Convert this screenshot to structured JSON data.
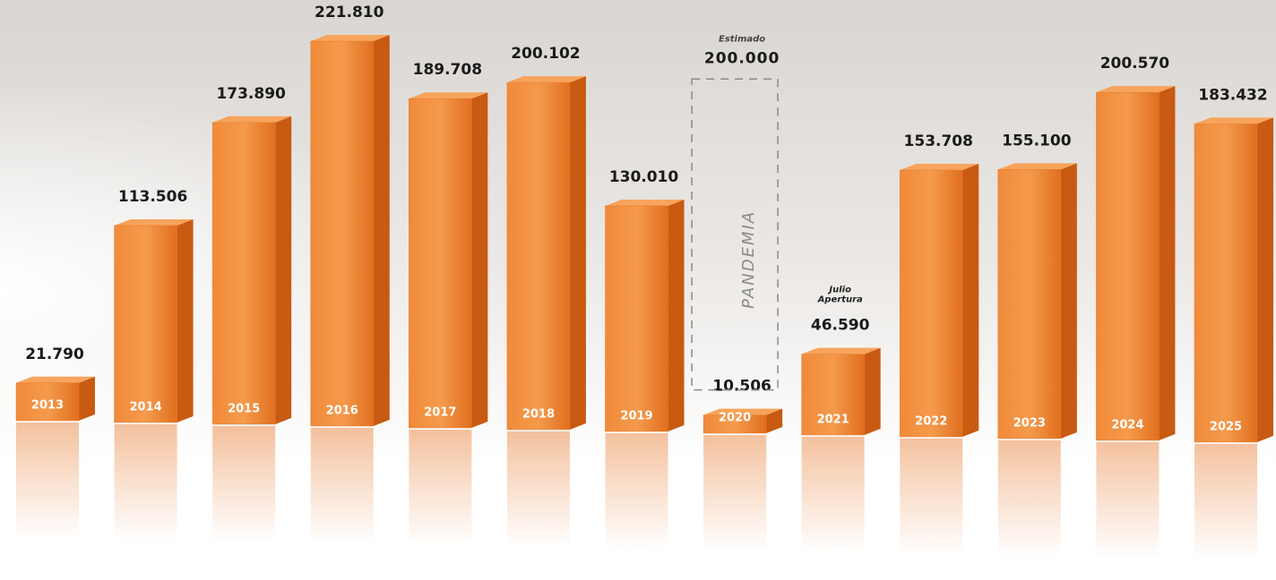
{
  "chart_data": {
    "type": "bar",
    "categories": [
      "2013",
      "2014",
      "2015",
      "2016",
      "2017",
      "2018",
      "2019",
      "2020",
      "2021",
      "2022",
      "2023",
      "2024",
      "2025"
    ],
    "values": [
      21790,
      113506,
      173890,
      221810,
      189708,
      200102,
      130010,
      10506,
      46590,
      153708,
      155100,
      200570,
      183432
    ],
    "value_labels": [
      "21.790",
      "113.506",
      "173.890",
      "221.810",
      "189.708",
      "200.102",
      "130.010",
      "10.506",
      "46.590",
      "153.708",
      "155.100",
      "200.570",
      "183.432"
    ],
    "color": "#e8782a",
    "estimate": {
      "category": "2020",
      "label": "Estimado",
      "value": 200000,
      "value_label": "200.000",
      "text": "PANDEMIA"
    },
    "note": {
      "category": "2021",
      "lines": [
        "Julio",
        "Apertura"
      ]
    }
  }
}
